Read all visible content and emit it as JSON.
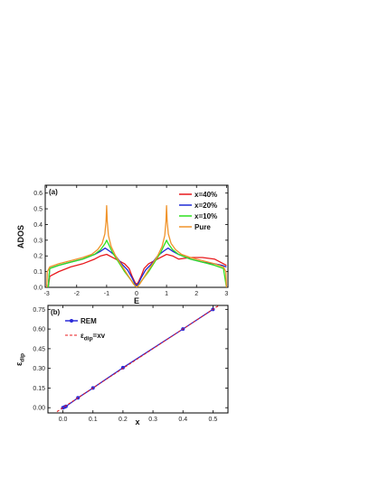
{
  "chart_data": [
    {
      "type": "line",
      "panel_label": "(a)",
      "xlabel": "E",
      "ylabel": "ADOS",
      "xlim": [
        -3.05,
        3.05
      ],
      "ylim": [
        0,
        0.65
      ],
      "xticks": [
        -3,
        -2,
        -1,
        0,
        1,
        2,
        3
      ],
      "yticks": [
        0.0,
        0.1,
        0.2,
        0.3,
        0.4,
        0.5,
        0.6
      ],
      "ytick_labels": [
        "0.0",
        "0.1",
        "0.2",
        "0.3",
        "0.4",
        "0.5",
        "0.6"
      ],
      "legend_position": "top-right",
      "series": [
        {
          "name": "x=40%",
          "color": "#e8191c",
          "x": [
            -2.95,
            -2.9,
            -2.6,
            -2.2,
            -1.8,
            -1.4,
            -1.2,
            -1.0,
            -0.8,
            -0.6,
            -0.4,
            -0.25,
            -0.15,
            -0.05,
            0.0,
            0.05,
            0.15,
            0.25,
            0.4,
            0.6,
            0.8,
            1.0,
            1.2,
            1.4,
            1.8,
            2.2,
            2.6,
            2.8,
            3.0
          ],
          "y": [
            0.0,
            0.07,
            0.1,
            0.13,
            0.15,
            0.18,
            0.2,
            0.21,
            0.19,
            0.17,
            0.15,
            0.12,
            0.07,
            0.03,
            0.02,
            0.03,
            0.07,
            0.12,
            0.15,
            0.17,
            0.19,
            0.21,
            0.2,
            0.18,
            0.19,
            0.19,
            0.18,
            0.16,
            0.14
          ]
        },
        {
          "name": "x=20%",
          "color": "#1f2bd6",
          "x": [
            -2.95,
            -2.9,
            -2.6,
            -2.2,
            -1.8,
            -1.4,
            -1.2,
            -1.05,
            -0.9,
            -0.7,
            -0.5,
            -0.3,
            -0.15,
            -0.05,
            0.0,
            0.05,
            0.15,
            0.3,
            0.5,
            0.7,
            0.9,
            1.05,
            1.2,
            1.4,
            1.8,
            2.2,
            2.6,
            2.85,
            3.0
          ],
          "y": [
            0.0,
            0.12,
            0.14,
            0.16,
            0.18,
            0.21,
            0.23,
            0.25,
            0.23,
            0.2,
            0.15,
            0.11,
            0.06,
            0.02,
            0.01,
            0.02,
            0.06,
            0.11,
            0.15,
            0.2,
            0.23,
            0.25,
            0.23,
            0.21,
            0.18,
            0.16,
            0.15,
            0.14,
            0.13
          ]
        },
        {
          "name": "x=10%",
          "color": "#2ee01f",
          "x": [
            -2.95,
            -2.9,
            -2.6,
            -2.2,
            -1.8,
            -1.4,
            -1.2,
            -1.05,
            -1.0,
            -0.95,
            -0.8,
            -0.6,
            -0.4,
            -0.2,
            -0.05,
            0.0,
            0.05,
            0.2,
            0.4,
            0.6,
            0.8,
            0.95,
            1.0,
            1.05,
            1.2,
            1.4,
            1.8,
            2.2,
            2.6,
            2.9,
            3.0
          ],
          "y": [
            0.0,
            0.12,
            0.14,
            0.16,
            0.18,
            0.21,
            0.24,
            0.28,
            0.3,
            0.28,
            0.22,
            0.16,
            0.1,
            0.05,
            0.01,
            0.0,
            0.01,
            0.05,
            0.1,
            0.16,
            0.22,
            0.28,
            0.3,
            0.28,
            0.24,
            0.21,
            0.18,
            0.16,
            0.14,
            0.12,
            0.0
          ]
        },
        {
          "name": "Pure",
          "color": "#f0932a",
          "x": [
            -3.0,
            -2.98,
            -2.9,
            -2.6,
            -2.2,
            -1.8,
            -1.5,
            -1.3,
            -1.15,
            -1.06,
            -1.02,
            -1.0,
            -0.98,
            -0.94,
            -0.85,
            -0.7,
            -0.5,
            -0.3,
            -0.1,
            0.0,
            0.1,
            0.3,
            0.5,
            0.7,
            0.85,
            0.94,
            0.98,
            1.0,
            1.02,
            1.06,
            1.15,
            1.3,
            1.5,
            1.8,
            2.2,
            2.6,
            2.9,
            2.98,
            3.0
          ],
          "y": [
            0.0,
            0.1,
            0.13,
            0.15,
            0.17,
            0.19,
            0.21,
            0.24,
            0.28,
            0.34,
            0.42,
            0.52,
            0.42,
            0.33,
            0.26,
            0.2,
            0.14,
            0.08,
            0.02,
            0.0,
            0.02,
            0.08,
            0.14,
            0.2,
            0.26,
            0.33,
            0.42,
            0.52,
            0.42,
            0.34,
            0.28,
            0.24,
            0.21,
            0.19,
            0.17,
            0.15,
            0.13,
            0.1,
            0.0
          ]
        }
      ]
    },
    {
      "type": "scatter",
      "panel_label": "(b)",
      "xlabel": "x",
      "ylabel": "ε",
      "ylabel_subscript": "dip",
      "xlim": [
        -0.05,
        0.55
      ],
      "ylim": [
        -0.04,
        0.78
      ],
      "xticks": [
        0.0,
        0.1,
        0.2,
        0.3,
        0.4,
        0.5
      ],
      "xtick_labels": [
        "0.0",
        "0.1",
        "0.2",
        "0.3",
        "0.4",
        "0.5"
      ],
      "yticks": [
        0.0,
        0.15,
        0.3,
        0.45,
        0.6,
        0.75
      ],
      "ytick_labels": [
        "0.00",
        "0.15",
        "0.30",
        "0.45",
        "0.60",
        "0.75"
      ],
      "legend_position": "top-left",
      "series": [
        {
          "name": "REM",
          "color": "#2b2bd9",
          "style": "line-markers",
          "x": [
            0.0,
            0.005,
            0.01,
            0.05,
            0.1,
            0.2,
            0.4,
            0.5
          ],
          "y": [
            0.0,
            0.005,
            0.01,
            0.075,
            0.15,
            0.305,
            0.6,
            0.75
          ]
        },
        {
          "name": "ε",
          "name_subscript": "dip",
          "name_suffix": "=xv",
          "color": "#e8191c",
          "style": "dashed",
          "x": [
            -0.02,
            0.52
          ],
          "y": [
            -0.03,
            0.78
          ]
        }
      ]
    }
  ]
}
